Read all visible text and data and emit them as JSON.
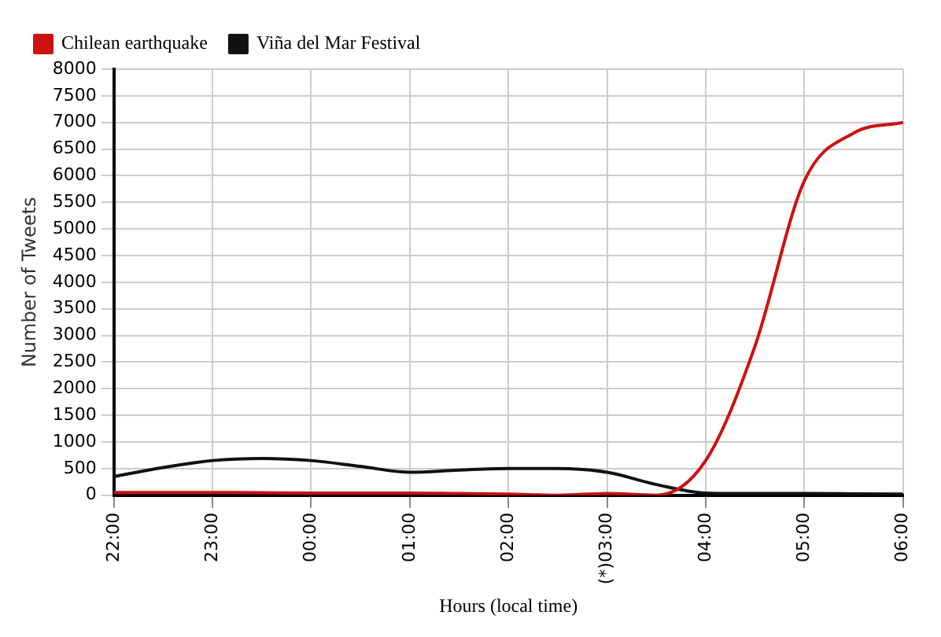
{
  "chart_data": {
    "type": "line",
    "xlabel": "Hours (local time)",
    "ylabel": "Number of Tweets",
    "categories": [
      "22:00",
      null,
      "23:00",
      null,
      "00:00",
      null,
      "01:00",
      null,
      "02:00",
      null,
      "(*)03:00",
      null,
      "04:00",
      null,
      "05:00",
      null,
      "06:00"
    ],
    "ylim": [
      0,
      8000
    ],
    "yticks": [
      0,
      500,
      1000,
      1500,
      2000,
      2500,
      3000,
      3500,
      4000,
      4500,
      5000,
      5500,
      6000,
      6500,
      7000,
      7500,
      8000
    ],
    "grid": true,
    "legend": "top left",
    "marker": "none",
    "line_style": "solid",
    "series": [
      {
        "name": "Chilean earthquake",
        "color": "#cc1111",
        "values": [
          50,
          50,
          50,
          45,
          40,
          40,
          40,
          30,
          20,
          0,
          30,
          0,
          650,
          2800,
          5900,
          6800,
          7000
        ]
      },
      {
        "name": "Viña del Mar Festival",
        "color": "#111111",
        "values": [
          350,
          520,
          650,
          690,
          650,
          540,
          430,
          470,
          500,
          500,
          430,
          200,
          40,
          30,
          30,
          25,
          20
        ]
      }
    ]
  }
}
